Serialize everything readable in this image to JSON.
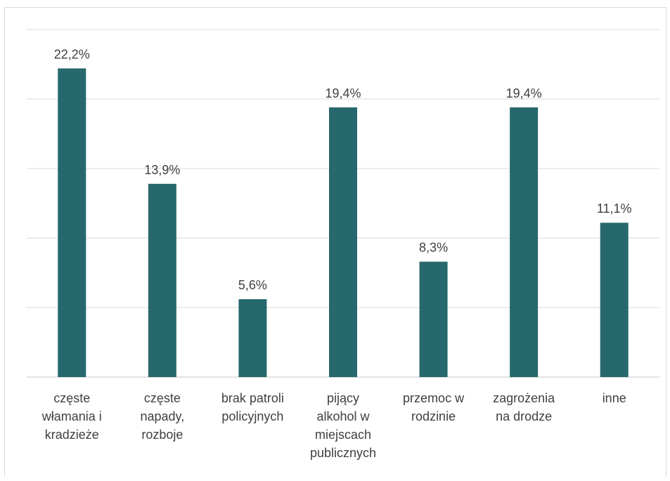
{
  "chart_data": {
    "type": "bar",
    "categories": [
      "częste włamania i kradzieże",
      "częste napady, rozboje",
      "brak patroli policyjnych",
      "pijący alkohol w miejscach publicznych",
      "przemoc w rodzinie",
      "zagrożenia na drodze",
      "inne"
    ],
    "category_lines": [
      [
        "częste",
        "włamania i",
        "kradzieże"
      ],
      [
        "częste",
        "napady,",
        "rozboje"
      ],
      [
        "brak patroli",
        "policyjnych"
      ],
      [
        "pijący",
        "alkohol w",
        "miejscach",
        "publicznych"
      ],
      [
        "przemoc w",
        "rodzinie"
      ],
      [
        "zagrożenia",
        "na drodze"
      ],
      [
        "inne"
      ]
    ],
    "values": [
      22.2,
      13.9,
      5.6,
      19.4,
      8.3,
      19.4,
      11.1
    ],
    "data_labels": [
      "22,2%",
      "13,9%",
      "5,6%",
      "19,4%",
      "8,3%",
      "19,4%",
      "11,1%"
    ],
    "ylim": [
      0,
      25
    ],
    "ytick_step": 5,
    "y_axis_labels_shown": false,
    "grid": true,
    "bar_color": "#26686d",
    "grid_color": "#d9d9d9",
    "text_color": "#404040"
  }
}
